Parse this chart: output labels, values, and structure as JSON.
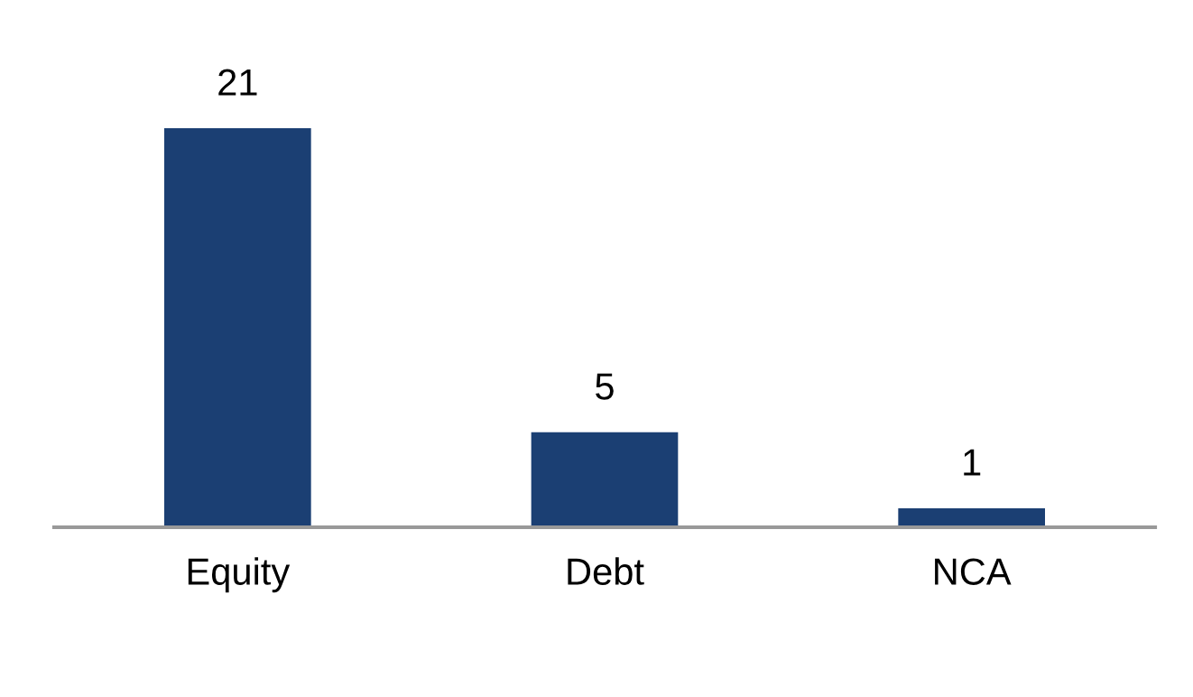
{
  "chart_data": {
    "type": "bar",
    "categories": [
      "Equity",
      "Debt",
      "NCA"
    ],
    "values": [
      21,
      5,
      1
    ],
    "color": "#1b3f73",
    "data_labels": true,
    "grid": false,
    "legend": false
  }
}
